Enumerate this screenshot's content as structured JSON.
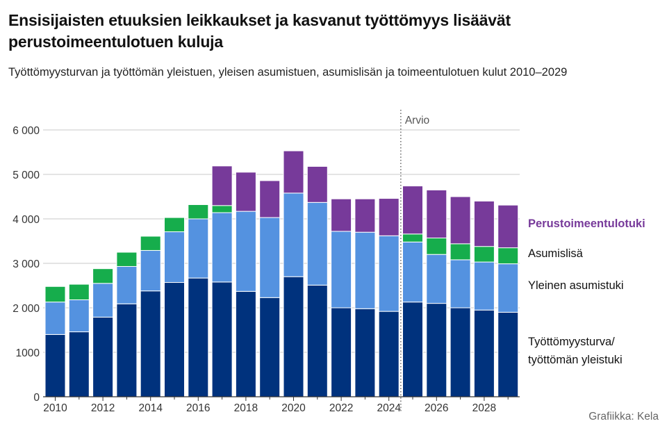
{
  "header": {
    "title": "Ensisijaisten etuuksien leikkaukset ja kasvanut työttömyys lisäävät perustoimeentulotuen kuluja",
    "subtitle": "Työttömyysturvan ja työttömän yleistuen, yleisen asumistuen, asumislisän ja toimeentulotuen kulut 2010–2029"
  },
  "credit": "Grafiikka: Kela",
  "colors": {
    "tyottomyysturva": "#00327d",
    "yleinen_asumistuki": "#5492e0",
    "asumislisa": "#16ad4c",
    "perustoimeentulotuki": "#773a9a"
  },
  "chart_data": {
    "type": "bar",
    "stacked": true,
    "categories": [
      2010,
      2011,
      2012,
      2013,
      2014,
      2015,
      2016,
      2017,
      2018,
      2019,
      2020,
      2021,
      2022,
      2023,
      2024,
      2025,
      2026,
      2027,
      2028,
      2029
    ],
    "x_tick_labels": [
      "2010",
      "2012",
      "2014",
      "2016",
      "2018",
      "2020",
      "2022",
      "2024",
      "2026",
      "2028"
    ],
    "ylim": [
      0,
      6000
    ],
    "y_ticks": [
      0,
      1000,
      2000,
      3000,
      4000,
      5000,
      6000
    ],
    "y_tick_labels": [
      "0",
      "1000",
      "2 000",
      "3 000",
      "4 000",
      "5 000",
      "6 000"
    ],
    "grid": true,
    "estimate_label": "Arvio",
    "estimate_from": 2025,
    "series": [
      {
        "name": "Työttömyysturva/ työttömän yleistuki",
        "legend_lines": [
          "Työttömyysturva/",
          "työttömän yleistuki"
        ],
        "color": "#00327d",
        "values": [
          1400,
          1460,
          1790,
          2090,
          2380,
          2570,
          2670,
          2580,
          2370,
          2230,
          2700,
          2510,
          2000,
          1980,
          1920,
          2130,
          2100,
          2000,
          1950,
          1900
        ]
      },
      {
        "name": "Yleinen asumistuki",
        "legend_lines": [
          "Yleinen asumistuki"
        ],
        "color": "#5492e0",
        "values": [
          730,
          720,
          760,
          840,
          910,
          1140,
          1330,
          1560,
          1800,
          1800,
          1880,
          1860,
          1720,
          1720,
          1700,
          1350,
          1100,
          1080,
          1080,
          1090
        ]
      },
      {
        "name": "Asumislisä",
        "legend_lines": [
          "Asumislisä"
        ],
        "color": "#16ad4c",
        "values": [
          350,
          350,
          330,
          320,
          320,
          320,
          320,
          160,
          0,
          0,
          0,
          0,
          0,
          0,
          0,
          180,
          370,
          360,
          350,
          360
        ]
      },
      {
        "name": "Perustoimeentulotuki",
        "legend_lines": [
          "Perustoimeentulotuki"
        ],
        "color": "#773a9a",
        "legend_bold": true,
        "values": [
          0,
          0,
          0,
          0,
          0,
          0,
          0,
          890,
          880,
          830,
          950,
          810,
          730,
          750,
          840,
          1080,
          1080,
          1060,
          1020,
          960
        ]
      }
    ]
  }
}
